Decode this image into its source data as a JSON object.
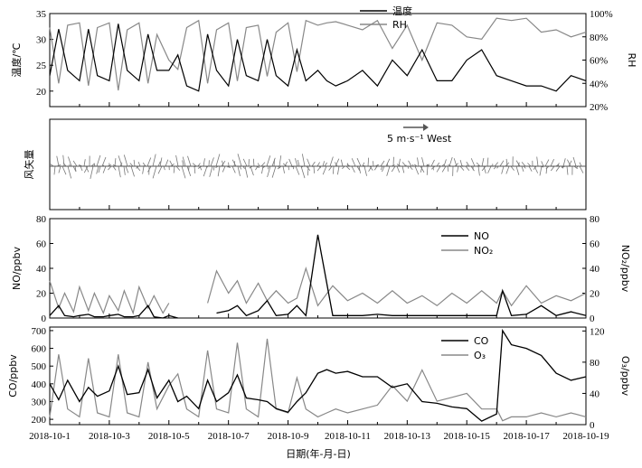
{
  "chart_data": [
    {
      "type": "line",
      "panel": "temperature-rh",
      "ylabel": "温度/℃",
      "ylabel2": "RH",
      "ylim": [
        17,
        35
      ],
      "ylim2": [
        20,
        100
      ],
      "yticks": [
        20,
        25,
        30,
        35
      ],
      "yticks2": [
        "20%",
        "40%",
        "60%",
        "80%",
        "100%"
      ],
      "series": [
        {
          "name": "温度",
          "color": "#000000",
          "axis": "left",
          "x": [
            1.0,
            1.3,
            1.6,
            2.0,
            2.3,
            2.6,
            3.0,
            3.3,
            3.6,
            4.0,
            4.3,
            4.6,
            5.0,
            5.3,
            5.6,
            6.0,
            6.3,
            6.6,
            7.0,
            7.3,
            7.6,
            8.0,
            8.3,
            8.6,
            9.0,
            9.3,
            9.6,
            10.0,
            10.3,
            10.6,
            11.0,
            11.5,
            12.0,
            12.5,
            13.0,
            13.5,
            14.0,
            14.5,
            15.0,
            15.5,
            16.0,
            16.5,
            17.0,
            17.5,
            18.0,
            18.5,
            19.0
          ],
          "y": [
            23,
            32,
            24,
            22,
            32,
            23,
            22,
            33,
            24,
            22,
            31,
            24,
            24,
            27,
            21,
            20,
            31,
            24,
            21,
            30,
            23,
            22,
            30,
            23,
            21,
            28,
            22,
            24,
            22,
            21,
            22,
            24,
            21,
            26,
            23,
            28,
            22,
            22,
            26,
            28,
            23,
            22,
            21,
            21,
            20,
            23,
            22
          ]
        },
        {
          "name": "RH",
          "color": "#888888",
          "axis": "right",
          "x": [
            1.0,
            1.3,
            1.6,
            2.0,
            2.3,
            2.6,
            3.0,
            3.3,
            3.6,
            4.0,
            4.3,
            4.6,
            5.0,
            5.3,
            5.6,
            6.0,
            6.3,
            6.6,
            7.0,
            7.3,
            7.6,
            8.0,
            8.3,
            8.6,
            9.0,
            9.3,
            9.6,
            10.0,
            10.3,
            10.6,
            11.0,
            11.5,
            12.0,
            12.5,
            13.0,
            13.5,
            14.0,
            14.5,
            15.0,
            15.5,
            16.0,
            16.5,
            17.0,
            17.5,
            18.0,
            18.5,
            19.0
          ],
          "y": [
            88,
            40,
            90,
            92,
            38,
            88,
            92,
            34,
            86,
            92,
            40,
            82,
            60,
            52,
            88,
            94,
            40,
            86,
            92,
            42,
            88,
            90,
            46,
            84,
            92,
            50,
            94,
            90,
            92,
            93,
            90,
            86,
            94,
            70,
            90,
            60,
            92,
            90,
            80,
            78,
            96,
            94,
            96,
            84,
            86,
            80,
            84
          ]
        }
      ]
    },
    {
      "type": "line",
      "panel": "wind-vectors",
      "ylabel": "风矢量",
      "annotation": "5 m·s⁻¹ West"
    },
    {
      "type": "line",
      "panel": "no-no2",
      "ylabel": "NO/ppbv",
      "ylabel2": "NO₂/ppbv",
      "ylim": [
        0,
        80
      ],
      "ylim2": [
        0,
        80
      ],
      "yticks": [
        0,
        20,
        40,
        60,
        80
      ],
      "yticks2": [
        0,
        20,
        40,
        60,
        80
      ],
      "series": [
        {
          "name": "NO",
          "color": "#000000",
          "axis": "left",
          "x": [
            1.0,
            1.3,
            1.5,
            1.8,
            2.0,
            2.3,
            2.5,
            2.8,
            3.0,
            3.3,
            3.5,
            3.8,
            4.0,
            4.3,
            4.5,
            4.8,
            5.0,
            5.3,
            5.5,
            6.0,
            6.3,
            6.6,
            7.0,
            7.3,
            7.6,
            8.0,
            8.3,
            8.6,
            9.0,
            9.3,
            9.6,
            10.0,
            10.5,
            11.0,
            11.5,
            12.0,
            12.5,
            13.0,
            13.5,
            14.0,
            14.5,
            15.0,
            15.5,
            16.0,
            16.2,
            16.5,
            17.0,
            17.5,
            18.0,
            18.5,
            19.0
          ],
          "y": [
            2,
            10,
            2,
            1,
            2,
            3,
            1,
            1,
            2,
            3,
            1,
            1,
            2,
            10,
            1,
            0,
            2,
            0,
            null,
            null,
            null,
            4,
            6,
            10,
            2,
            6,
            14,
            2,
            3,
            10,
            2,
            67,
            2,
            2,
            2,
            3,
            2,
            2,
            2,
            2,
            2,
            2,
            2,
            2,
            22,
            2,
            3,
            10,
            2,
            5,
            2
          ]
        },
        {
          "name": "NO₂",
          "color": "#888888",
          "axis": "right",
          "x": [
            1.0,
            1.3,
            1.5,
            1.8,
            2.0,
            2.3,
            2.5,
            2.8,
            3.0,
            3.3,
            3.5,
            3.8,
            4.0,
            4.3,
            4.5,
            4.8,
            5.0,
            5.3,
            5.5,
            6.0,
            6.3,
            6.6,
            7.0,
            7.3,
            7.6,
            8.0,
            8.3,
            8.6,
            9.0,
            9.3,
            9.6,
            10.0,
            10.5,
            11.0,
            11.5,
            12.0,
            12.5,
            13.0,
            13.5,
            14.0,
            14.5,
            15.0,
            15.5,
            16.0,
            16.2,
            16.5,
            17.0,
            17.5,
            18.0,
            18.5,
            19.0
          ],
          "y": [
            30,
            8,
            20,
            5,
            25,
            6,
            20,
            4,
            18,
            6,
            22,
            4,
            25,
            8,
            18,
            4,
            12,
            null,
            null,
            null,
            12,
            38,
            20,
            30,
            12,
            28,
            14,
            22,
            12,
            16,
            40,
            10,
            26,
            14,
            20,
            12,
            22,
            12,
            18,
            10,
            20,
            12,
            22,
            12,
            22,
            10,
            26,
            12,
            18,
            14,
            20
          ]
        }
      ]
    },
    {
      "type": "line",
      "panel": "co-o3",
      "ylabel": "CO/ppbv",
      "ylabel2": "O₃/ppbv",
      "ylim": [
        170,
        720
      ],
      "ylim2": [
        0,
        125
      ],
      "yticks": [
        200,
        300,
        400,
        500,
        600,
        700
      ],
      "yticks2": [
        0,
        40,
        80,
        120
      ],
      "xlabel": "日期(年-月-日)",
      "xticks": [
        "2018-10-1",
        "2018-10-3",
        "2018-10-5",
        "2018-10-7",
        "2018-10-9",
        "2018-10-11",
        "2018-10-13",
        "2018-10-15",
        "2018-10-17",
        "2018-10-19"
      ],
      "xrange": [
        1,
        19
      ],
      "series": [
        {
          "name": "CO",
          "color": "#000000",
          "axis": "left",
          "x": [
            1.0,
            1.3,
            1.6,
            2.0,
            2.3,
            2.6,
            3.0,
            3.3,
            3.6,
            4.0,
            4.3,
            4.6,
            5.0,
            5.3,
            5.6,
            6.0,
            6.3,
            6.6,
            7.0,
            7.3,
            7.6,
            8.0,
            8.3,
            8.6,
            9.0,
            9.3,
            9.6,
            10.0,
            10.3,
            10.6,
            11.0,
            11.5,
            12.0,
            12.5,
            13.0,
            13.5,
            14.0,
            14.5,
            15.0,
            15.5,
            16.0,
            16.2,
            16.5,
            17.0,
            17.5,
            18.0,
            18.5,
            19.0
          ],
          "y": [
            400,
            310,
            420,
            300,
            380,
            330,
            360,
            500,
            340,
            350,
            480,
            320,
            420,
            300,
            330,
            260,
            420,
            300,
            350,
            450,
            320,
            310,
            300,
            260,
            240,
            300,
            350,
            460,
            480,
            460,
            470,
            440,
            440,
            380,
            400,
            300,
            290,
            270,
            260,
            190,
            230,
            700,
            620,
            600,
            560,
            460,
            420,
            440
          ]
        },
        {
          "name": "O₃",
          "color": "#888888",
          "axis": "right",
          "x": [
            1.0,
            1.3,
            1.6,
            2.0,
            2.3,
            2.6,
            3.0,
            3.3,
            3.6,
            4.0,
            4.3,
            4.6,
            5.0,
            5.3,
            5.6,
            6.0,
            6.3,
            6.6,
            7.0,
            7.3,
            7.6,
            8.0,
            8.3,
            8.6,
            9.0,
            9.3,
            9.6,
            10.0,
            10.3,
            10.6,
            11.0,
            11.5,
            12.0,
            12.5,
            13.0,
            13.5,
            14.0,
            14.5,
            15.0,
            15.5,
            16.0,
            16.2,
            16.5,
            17.0,
            17.5,
            18.0,
            18.5,
            19.0
          ],
          "y": [
            10,
            90,
            20,
            10,
            85,
            15,
            10,
            90,
            15,
            10,
            80,
            20,
            50,
            65,
            20,
            10,
            95,
            20,
            15,
            105,
            20,
            10,
            110,
            20,
            15,
            60,
            20,
            10,
            15,
            20,
            15,
            20,
            25,
            50,
            30,
            70,
            30,
            35,
            40,
            20,
            20,
            5,
            10,
            10,
            15,
            10,
            15,
            10
          ]
        }
      ]
    }
  ],
  "legend": {
    "t_label": "温度",
    "rh_label": "RH",
    "no_label": "NO",
    "no2_label": "NO₂",
    "co_label": "CO",
    "o3_label": "O₃"
  },
  "wind_annotation": "5 m·s⁻¹ West",
  "xlabel": "日期(年-月-日)"
}
